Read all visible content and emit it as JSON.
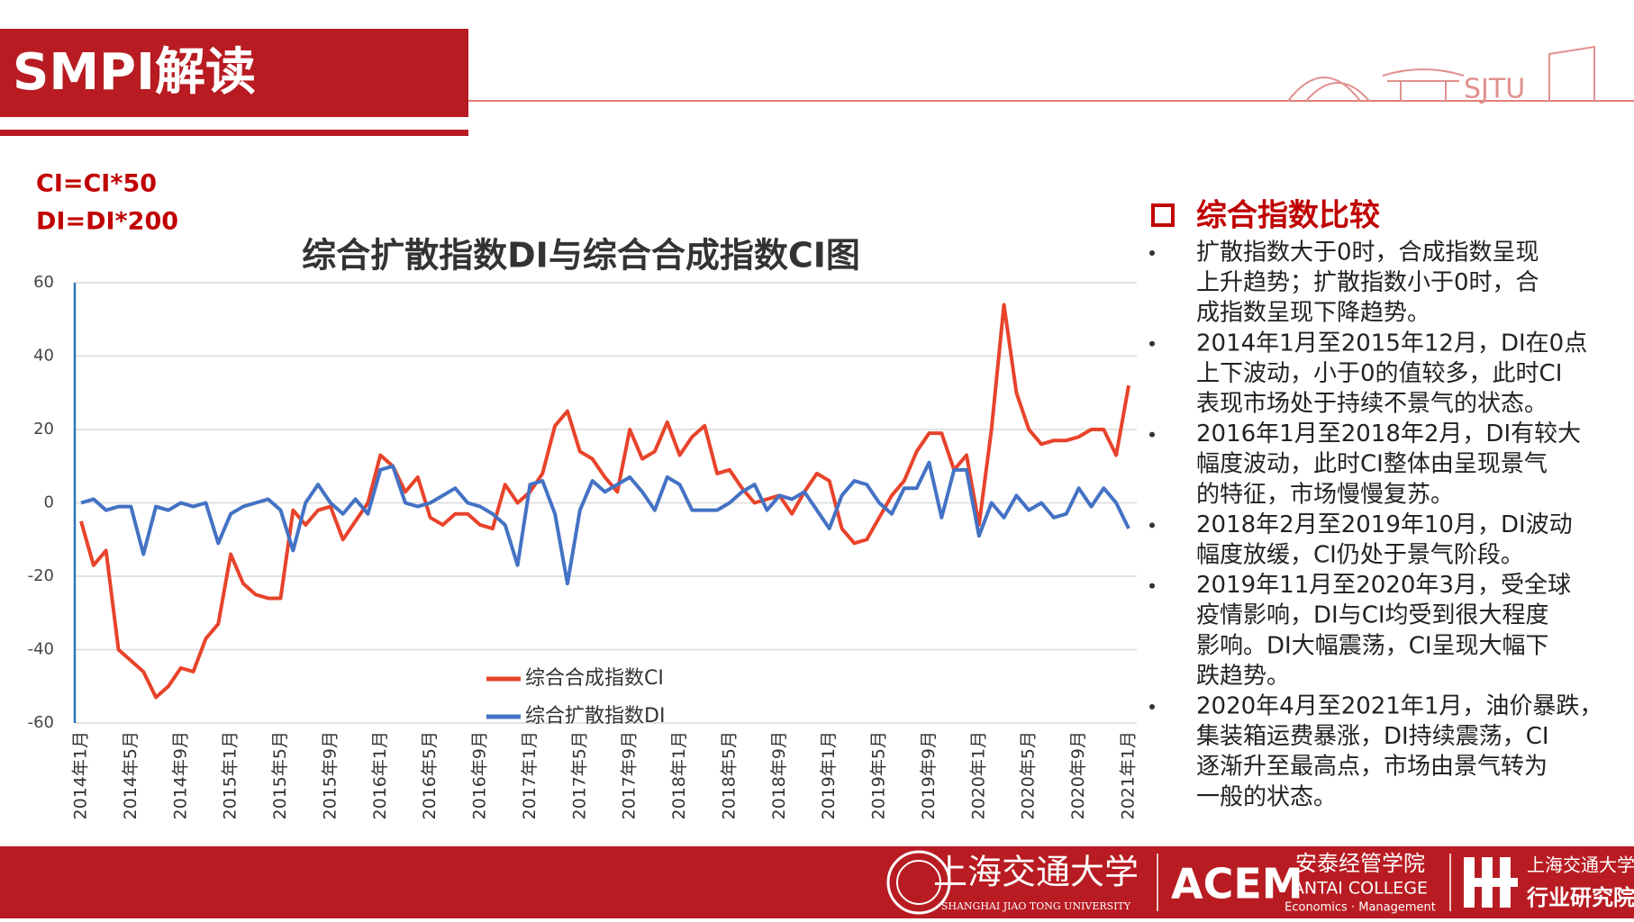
{
  "header": {
    "title": "SMPI解读",
    "logo_text": "SJTU"
  },
  "notes": [
    "CI=CI*50",
    "DI=DI*200"
  ],
  "chart_data": {
    "type": "line",
    "title": "综合扩散指数DI与综合合成指数CI图",
    "categories": [
      "2014年1月",
      null,
      null,
      null,
      "2014年5月",
      null,
      null,
      null,
      "2014年9月",
      null,
      null,
      null,
      "2015年1月",
      null,
      null,
      null,
      "2015年5月",
      null,
      null,
      null,
      "2015年9月",
      null,
      null,
      null,
      "2016年1月",
      null,
      null,
      null,
      "2016年5月",
      null,
      null,
      null,
      "2016年9月",
      null,
      null,
      null,
      "2017年1月",
      null,
      null,
      null,
      "2017年5月",
      null,
      null,
      null,
      "2017年9月",
      null,
      null,
      null,
      "2018年1月",
      null,
      null,
      null,
      "2018年5月",
      null,
      null,
      null,
      "2018年9月",
      null,
      null,
      null,
      "2019年1月",
      null,
      null,
      null,
      "2019年5月",
      null,
      null,
      null,
      "2019年9月",
      null,
      null,
      null,
      "2020年1月",
      null,
      null,
      null,
      "2020年5月",
      null,
      null,
      null,
      "2020年9月",
      null,
      null,
      null,
      "2021年1月"
    ],
    "series": [
      {
        "name": "综合合成指数CI",
        "color": "#e8432b",
        "values": [
          -5,
          -17,
          -13,
          -40,
          -43,
          -46,
          -53,
          -50,
          -45,
          -46,
          -37,
          -33,
          -14,
          -22,
          -25,
          -26,
          -26,
          -2,
          -6,
          -2,
          -1,
          -10,
          -5,
          0,
          13,
          10,
          3,
          7,
          -4,
          -6,
          -3,
          -3,
          -6,
          -7,
          5,
          0,
          3,
          8,
          21,
          25,
          14,
          12,
          7,
          3,
          20,
          12,
          14,
          22,
          13,
          18,
          21,
          8,
          9,
          4,
          0,
          1,
          2,
          -3,
          3,
          8,
          6,
          -7,
          -11,
          -10,
          -4,
          2,
          6,
          14,
          19,
          19,
          9,
          13,
          -6,
          20,
          54,
          30,
          20,
          16,
          17,
          17,
          18,
          20,
          20,
          13,
          32
        ]
      },
      {
        "name": "综合扩散指数DI",
        "color": "#4472c4",
        "values": [
          0,
          1,
          -2,
          -1,
          -1,
          -14,
          -1,
          -2,
          0,
          -1,
          0,
          -11,
          -3,
          -1,
          0,
          1,
          -2,
          -13,
          0,
          5,
          0,
          -3,
          1,
          -3,
          9,
          10,
          0,
          -1,
          0,
          2,
          4,
          0,
          -1,
          -3,
          -6,
          -17,
          5,
          6,
          -3,
          -22,
          -2,
          6,
          3,
          5,
          7,
          3,
          -2,
          7,
          5,
          -2,
          -2,
          -2,
          0,
          3,
          5,
          -2,
          2,
          1,
          3,
          -2,
          -7,
          2,
          6,
          5,
          0,
          -3,
          4,
          4,
          11,
          -4,
          9,
          9,
          -9,
          0,
          -4,
          2,
          -2,
          0,
          -4,
          -3,
          4,
          -1,
          4,
          0,
          -7
        ]
      }
    ],
    "ylim": [
      -60,
      60
    ],
    "yticks": [
      -60,
      -40,
      -20,
      0,
      20,
      40,
      60
    ],
    "grid": true
  },
  "panel": {
    "heading": "综合指数比较",
    "items": [
      [
        "扩散指数大于0时，合成指数呈现",
        "上升趋势；扩散指数小于0时，合",
        "成指数呈现下降趋势。"
      ],
      [
        "2014年1月至2015年12月，DI在0点",
        "上下波动，小于0的值较多，此时CI",
        "表现市场处于持续不景气的状态。"
      ],
      [
        "2016年1月至2018年2月，DI有较大",
        "幅度波动，此时CI整体由呈现景气",
        "的特征，市场慢慢复苏。"
      ],
      [
        "2018年2月至2019年10月，DI波动",
        "幅度放缓，CI仍处于景气阶段。"
      ],
      [
        "2019年11月至2020年3月，受全球",
        "疫情影响，DI与CI均受到很大程度",
        "影响。DI大幅震荡，CI呈现大幅下",
        "跌趋势。"
      ],
      [
        "2020年4月至2021年1月，油价暴跌，",
        "集装箱运费暴涨，DI持续震荡，CI",
        "逐渐升至最高点，市场由景气转为",
        "一般的状态。"
      ]
    ]
  },
  "footer": {
    "sjtu_cn": "上海交通大学",
    "sjtu_en": "SHANGHAI JIAO TONG UNIVERSITY",
    "acem": "ACEM",
    "antai_cn": "安泰经管学院",
    "antai_en": "ANTAI COLLEGE",
    "antai_sub": "Economics · Management",
    "inst_top": "上海交通大学",
    "inst_bottom": "行业研究院"
  }
}
